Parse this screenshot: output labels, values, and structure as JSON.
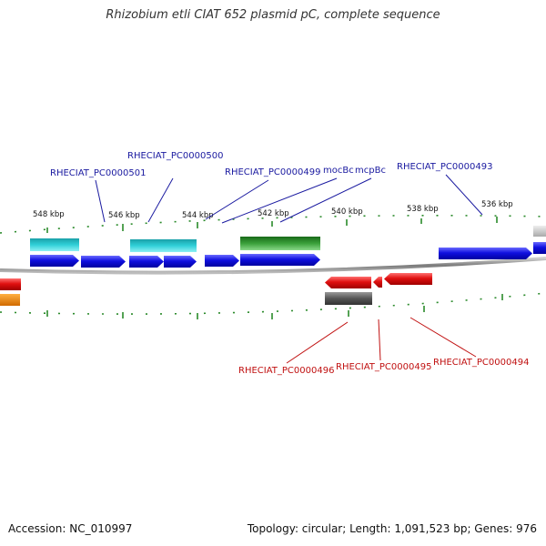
{
  "title": "Rhizobium etli CIAT 652 plasmid pC, complete sequence",
  "footer": {
    "accession": "Accession: NC_010997",
    "stats": "Topology: circular; Length: 1,091,523 bp; Genes: 976"
  },
  "ticks": {
    "t548": "548 kbp",
    "t546": "546 kbp",
    "t544": "544 kbp",
    "t542": "542 kbp",
    "t540": "540 kbp",
    "t538": "538 kbp",
    "t536": "536 kbp"
  },
  "genes": {
    "g501": "RHECIAT_PC0000501",
    "g500": "RHECIAT_PC0000500",
    "g499": "RHECIAT_PC0000499",
    "mocBc": "mocBc",
    "mcpBc": "mcpBc",
    "g493": "RHECIAT_PC0000493",
    "g496": "RHECIAT_PC0000496",
    "g495": "RHECIAT_PC0000495",
    "g494": "RHECIAT_PC0000494"
  },
  "colors": {
    "forward_cds": "#1010e0",
    "reverse_cds": "#e01010",
    "cyan_feature": "#20c0c8",
    "green_feature": "#2a9a2a",
    "grey_feature": "#666666",
    "orange_feature": "#f08a00",
    "tick": "#2a8a2a",
    "backbone": "#8a8a8a",
    "label_forward": "#1a1aa0",
    "label_reverse": "#c01010"
  }
}
